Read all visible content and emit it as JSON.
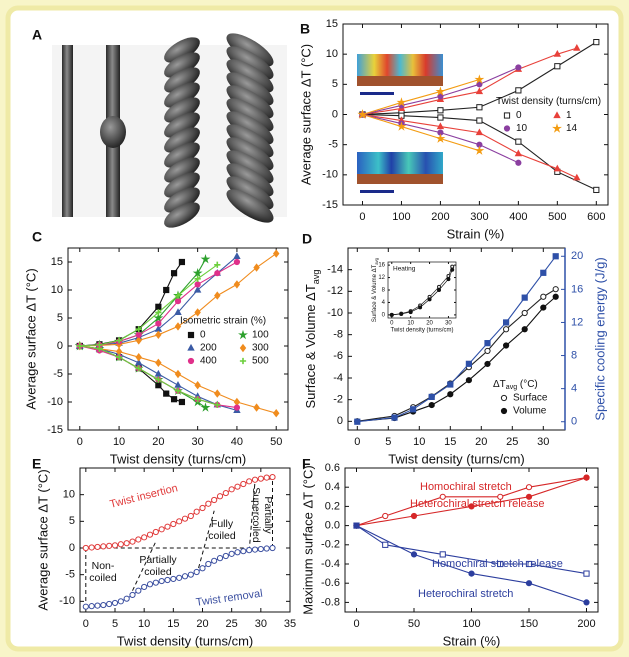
{
  "image_panel": {
    "label": "A"
  },
  "chart_data": [
    {
      "type": "line",
      "panel": "B",
      "xlabel": "Strain (%)",
      "ylabel": "Average surface ΔT (°C)",
      "xlim": [
        -50,
        630
      ],
      "xticks": [
        0,
        100,
        200,
        300,
        400,
        500,
        600
      ],
      "ylim": [
        -15,
        15
      ],
      "yticks": [
        -15,
        -10,
        -5,
        0,
        5,
        10,
        15
      ],
      "legend": "center right",
      "legend_title": "Twist density (turns/cm)",
      "series": [
        {
          "name": "0",
          "color": "#222222",
          "marker": "square",
          "filled": false,
          "x": [
            0,
            100,
            200,
            300,
            400,
            500,
            600
          ],
          "upper": [
            0,
            0.3,
            0.7,
            1.2,
            4,
            8,
            12
          ],
          "lower": [
            0,
            -0.2,
            -0.5,
            -1,
            -4.5,
            -9.5,
            -12.5
          ]
        },
        {
          "name": "1",
          "color": "#e8413a",
          "marker": "triangle",
          "filled": true,
          "x": [
            0,
            100,
            200,
            300,
            400,
            500,
            550
          ],
          "upper": [
            0,
            1,
            2.5,
            3.8,
            7.5,
            10,
            11
          ],
          "lower": [
            0,
            -1,
            -2,
            -3,
            -6.5,
            -9,
            -10.5
          ]
        },
        {
          "name": "10",
          "color": "#8b3fa0",
          "marker": "circle",
          "filled": true,
          "x": [
            0,
            100,
            200,
            300,
            400
          ],
          "upper": [
            0,
            1.5,
            3,
            5,
            7.8
          ],
          "lower": [
            0,
            -1.5,
            -3,
            -5,
            -8
          ]
        },
        {
          "name": "14",
          "color": "#f39c12",
          "marker": "star",
          "filled": true,
          "x": [
            0,
            100,
            200,
            300
          ],
          "upper": [
            0,
            2,
            3.8,
            5.8
          ],
          "lower": [
            0,
            -2,
            -4,
            -6
          ]
        }
      ]
    },
    {
      "type": "line",
      "panel": "C",
      "xlabel": "Twist density (turns/cm)",
      "ylabel": "Average surface ΔT (°C)",
      "xlim": [
        -3,
        53
      ],
      "xticks": [
        0,
        10,
        20,
        30,
        40,
        50
      ],
      "ylim": [
        -15,
        17.5
      ],
      "yticks": [
        -15,
        -10,
        -5,
        0,
        5,
        10,
        15
      ],
      "legend": "center right",
      "legend_title": "Isometric strain (%)",
      "series": [
        {
          "name": "0",
          "color": "#111111",
          "marker": "square",
          "filled": true,
          "x": [
            0,
            5,
            10,
            15,
            20,
            22,
            24,
            26
          ],
          "upper": [
            0,
            0.3,
            1,
            3,
            7,
            10,
            13,
            15
          ],
          "lower": [
            0,
            -0.5,
            -2,
            -4,
            -7,
            -8.5,
            -9.5,
            -10
          ]
        },
        {
          "name": "100",
          "color": "#2ca02c",
          "marker": "star",
          "filled": true,
          "x": [
            0,
            5,
            10,
            15,
            20,
            25,
            30,
            32
          ],
          "upper": [
            0,
            0.2,
            0.8,
            2,
            5,
            9,
            13,
            15.5
          ],
          "lower": [
            0,
            -0.5,
            -2,
            -4,
            -6,
            -8,
            -10,
            -11
          ]
        },
        {
          "name": "200",
          "color": "#3b5ba5",
          "marker": "triangle",
          "filled": true,
          "x": [
            0,
            5,
            10,
            15,
            20,
            25,
            30,
            35,
            40
          ],
          "upper": [
            0,
            0.2,
            0.5,
            1.5,
            3,
            6,
            10,
            13,
            16
          ],
          "lower": [
            0,
            -0.5,
            -1.5,
            -3,
            -5,
            -7,
            -9,
            -10.5,
            -11.5
          ]
        },
        {
          "name": "300",
          "color": "#f08c1e",
          "marker": "diamond",
          "filled": true,
          "x": [
            0,
            5,
            10,
            15,
            20,
            25,
            30,
            35,
            40,
            45,
            50
          ],
          "upper": [
            0,
            0.1,
            0.3,
            1,
            2,
            3.5,
            6,
            9,
            11,
            14,
            16.5
          ],
          "lower": [
            0,
            -0.5,
            -1,
            -2,
            -3,
            -5,
            -7,
            -8.5,
            -10,
            -11,
            -12
          ]
        },
        {
          "name": "400",
          "color": "#e0308a",
          "marker": "circle",
          "filled": true,
          "x": [
            0,
            5,
            10,
            15,
            20,
            25,
            30,
            35,
            40
          ],
          "upper": [
            0,
            0.2,
            0.8,
            2,
            4,
            8,
            11,
            13,
            15
          ],
          "lower": [
            0,
            -0.8,
            -2,
            -4,
            -6,
            -8,
            -9.5,
            -10.5,
            -11
          ]
        },
        {
          "name": "500",
          "color": "#6ccf3c",
          "marker": "plus",
          "filled": true,
          "x": [
            0,
            5,
            10,
            15,
            20,
            25,
            30,
            35
          ],
          "upper": [
            0,
            0.2,
            1,
            3,
            6,
            9,
            12,
            14.5
          ],
          "lower": [
            0,
            -0.5,
            -2,
            -4,
            -6,
            -8,
            -9.5,
            -10.5
          ]
        }
      ]
    },
    {
      "type": "line",
      "panel": "D",
      "xlabel": "Twist density (turns/cm)",
      "ylabel": [
        "Surface & Volume ΔT",
        "avg"
      ],
      "y2label": "Specific cooling energy (J/g)",
      "y2_color": "#2e50a8",
      "xlim": [
        -1.5,
        33.5
      ],
      "xticks": [
        0,
        5,
        10,
        15,
        20,
        25,
        30
      ],
      "ylim": [
        0.8,
        -16
      ],
      "yticks": [
        0,
        -2,
        -4,
        -6,
        -8,
        -10,
        -12,
        -14
      ],
      "y2lim": [
        -1,
        21
      ],
      "y2ticks": [
        0,
        4,
        8,
        12,
        16,
        20
      ],
      "legend": "lower right",
      "legend_title": [
        "ΔT",
        "avg",
        " (°C)"
      ],
      "series": [
        {
          "name": "Surface",
          "color": "#222222",
          "marker": "circle",
          "filled": false,
          "x": [
            0,
            6,
            9,
            12,
            15,
            18,
            21,
            24,
            27,
            30,
            32
          ],
          "values": [
            0,
            -0.5,
            -1.3,
            -2.3,
            -3.5,
            -5,
            -6.5,
            -8.5,
            -10,
            -11.5,
            -12.2
          ]
        },
        {
          "name": "Volume",
          "color": "#111111",
          "marker": "circle",
          "filled": true,
          "x": [
            0,
            6,
            9,
            12,
            15,
            18,
            21,
            24,
            27,
            30,
            32
          ],
          "values": [
            0,
            -0.3,
            -0.9,
            -1.5,
            -2.5,
            -3.8,
            -5.3,
            -7,
            -8.5,
            -10.5,
            -11.5
          ]
        },
        {
          "color": "#2e50a8",
          "marker": "square",
          "filled": true,
          "axis": "y2",
          "x": [
            0,
            6,
            9,
            12,
            15,
            18,
            21,
            24,
            27,
            30,
            32
          ],
          "values": [
            0,
            0.5,
            1.5,
            3,
            4.5,
            7,
            9.5,
            12,
            15,
            18,
            20
          ]
        }
      ]
    },
    {
      "type": "line",
      "title": "Heating",
      "xlabel": "Twist density (turns/cm)",
      "ylabel": [
        "Surface & Volume ΔT",
        "avg"
      ],
      "xlim": [
        -2,
        34
      ],
      "xticks": [
        0,
        10,
        20,
        30
      ],
      "ylim": [
        -1,
        17
      ],
      "yticks": [
        0,
        4,
        8,
        12,
        16
      ],
      "series": [
        {
          "color": "#222222",
          "marker": "circle",
          "filled": false,
          "x": [
            0,
            5,
            10,
            15,
            20,
            25,
            30,
            32
          ],
          "values": [
            0,
            0.4,
            1.2,
            3,
            5.8,
            9,
            12.5,
            15.5
          ]
        },
        {
          "color": "#111111",
          "marker": "circle",
          "filled": true,
          "x": [
            0,
            5,
            10,
            15,
            20,
            25,
            30,
            32
          ],
          "values": [
            0,
            0.3,
            0.9,
            2.4,
            5,
            8,
            11.5,
            14.5
          ]
        }
      ]
    },
    {
      "type": "line",
      "panel": "E",
      "xlabel": "Twist density (turns/cm)",
      "ylabel": "Average surface ΔT (°C)",
      "xlim": [
        -1,
        35
      ],
      "xticks": [
        0,
        5,
        10,
        15,
        20,
        25,
        30,
        35
      ],
      "ylim": [
        -12,
        15
      ],
      "yticks": [
        -10,
        -5,
        0,
        5,
        10
      ],
      "legend": "inline",
      "annotations": [
        {
          "lines": [
            "Non-",
            "coiled"
          ]
        },
        {
          "lines": [
            "Partially",
            "coiled"
          ]
        },
        {
          "lines": [
            "Fully",
            "coiled"
          ]
        },
        {
          "lines": [
            "Partially",
            "Supercoiled"
          ]
        }
      ],
      "series": [
        {
          "name": "Twist insertion",
          "color": "#e03a3a",
          "marker": "circle",
          "filled": false,
          "x": [
            0,
            1,
            2,
            3,
            4,
            5,
            6,
            7,
            8,
            9,
            10,
            11,
            12,
            13,
            14,
            15,
            16,
            17,
            18,
            19,
            20,
            21,
            22,
            23,
            24,
            25,
            26,
            27,
            28,
            29,
            30,
            31,
            32
          ],
          "values": [
            0,
            0.1,
            0.2,
            0.3,
            0.4,
            0.5,
            0.7,
            0.9,
            1.2,
            1.6,
            2.0,
            2.5,
            3.0,
            3.5,
            4.0,
            4.5,
            5.0,
            5.5,
            6.0,
            6.8,
            7.5,
            8.3,
            9.0,
            9.7,
            10.3,
            11.0,
            11.5,
            12.0,
            12.5,
            12.8,
            13.0,
            13.2,
            13.3
          ]
        },
        {
          "name": "Twist removal",
          "color": "#3b4fa0",
          "marker": "circle",
          "filled": false,
          "x": [
            0,
            1,
            2,
            3,
            4,
            5,
            6,
            7,
            8,
            9,
            10,
            11,
            12,
            13,
            14,
            15,
            16,
            17,
            18,
            19,
            20,
            21,
            22,
            23,
            24,
            25,
            26,
            27,
            28,
            29,
            30,
            31,
            32
          ],
          "values": [
            -11,
            -10.9,
            -10.8,
            -10.7,
            -10.5,
            -10.3,
            -10.0,
            -9.5,
            -8.8,
            -8.0,
            -7.3,
            -6.8,
            -6.5,
            -6.2,
            -6.0,
            -5.8,
            -5.6,
            -5.3,
            -5.0,
            -4.5,
            -3.8,
            -3.0,
            -2.4,
            -1.9,
            -1.5,
            -1.1,
            -0.8,
            -0.6,
            -0.4,
            -0.3,
            -0.2,
            -0.1,
            0
          ]
        }
      ]
    },
    {
      "type": "line",
      "panel": "F",
      "xlabel": "Strain (%)",
      "ylabel": "Maximum surface ΔT (°C)",
      "xlim": [
        -10,
        210
      ],
      "xticks": [
        0,
        50,
        100,
        150,
        200
      ],
      "ylim": [
        -0.9,
        0.6
      ],
      "yticks": [
        -0.8,
        -0.6,
        -0.4,
        -0.2,
        {
          "value": 0,
          "label": "0.0"
        },
        0.2,
        0.4,
        0.6
      ],
      "legend": "inline",
      "series": [
        {
          "name": "Homochiral stretch",
          "color": "#d62728",
          "marker": "circle",
          "filled": false,
          "x": [
            0,
            25,
            75,
            125,
            150,
            200
          ],
          "values": [
            0,
            0.1,
            0.3,
            0.3,
            0.4,
            0.5
          ]
        },
        {
          "name": "Heterochiral stretch release",
          "color": "#d62728",
          "marker": "circle",
          "filled": true,
          "x": [
            0,
            50,
            100,
            150,
            200
          ],
          "values": [
            0,
            0.1,
            0.2,
            0.3,
            0.5
          ]
        },
        {
          "name": "Homochiral stretch release",
          "color": "#2c3e9e",
          "marker": "square",
          "filled": false,
          "x": [
            0,
            25,
            75,
            125,
            150,
            200
          ],
          "values": [
            0,
            -0.2,
            -0.3,
            -0.4,
            -0.4,
            -0.5
          ]
        },
        {
          "name": "Heterochiral stretch",
          "color": "#2c3e9e",
          "marker": "circle",
          "filled": true,
          "x": [
            0,
            50,
            100,
            150,
            200
          ],
          "values": [
            0,
            -0.3,
            -0.5,
            -0.6,
            -0.8
          ]
        }
      ]
    }
  ]
}
